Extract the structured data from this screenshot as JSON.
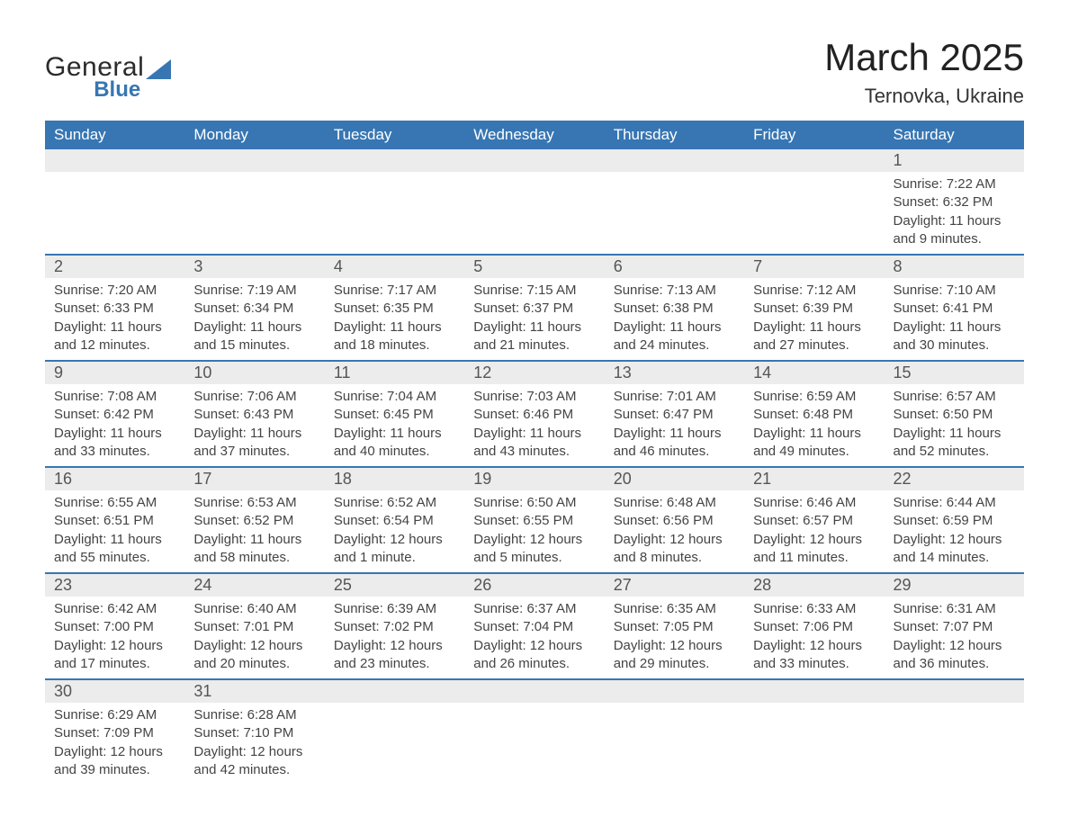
{
  "brand": {
    "word1": "General",
    "word2": "Blue",
    "accent_color": "#3776b3"
  },
  "title": "March 2025",
  "location": "Ternovka, Ukraine",
  "colors": {
    "header_bg": "#3776b3",
    "header_text": "#ffffff",
    "row_divider": "#3776b3",
    "daynum_bg": "#ececec",
    "body_text": "#444444",
    "page_bg": "#ffffff"
  },
  "typography": {
    "title_fontsize_pt": 32,
    "location_fontsize_pt": 17,
    "dow_fontsize_pt": 13,
    "daynum_fontsize_pt": 14,
    "body_fontsize_pt": 11
  },
  "layout": {
    "columns": 7,
    "start_day_of_week": "Sunday"
  },
  "days_of_week": [
    "Sunday",
    "Monday",
    "Tuesday",
    "Wednesday",
    "Thursday",
    "Friday",
    "Saturday"
  ],
  "labels": {
    "sunrise": "Sunrise: ",
    "sunset": "Sunset: ",
    "daylight": "Daylight: "
  },
  "weeks": [
    [
      {
        "empty": true
      },
      {
        "empty": true
      },
      {
        "empty": true
      },
      {
        "empty": true
      },
      {
        "empty": true
      },
      {
        "empty": true
      },
      {
        "n": "1",
        "sunrise": "7:22 AM",
        "sunset": "6:32 PM",
        "daylight": "11 hours and 9 minutes."
      }
    ],
    [
      {
        "n": "2",
        "sunrise": "7:20 AM",
        "sunset": "6:33 PM",
        "daylight": "11 hours and 12 minutes."
      },
      {
        "n": "3",
        "sunrise": "7:19 AM",
        "sunset": "6:34 PM",
        "daylight": "11 hours and 15 minutes."
      },
      {
        "n": "4",
        "sunrise": "7:17 AM",
        "sunset": "6:35 PM",
        "daylight": "11 hours and 18 minutes."
      },
      {
        "n": "5",
        "sunrise": "7:15 AM",
        "sunset": "6:37 PM",
        "daylight": "11 hours and 21 minutes."
      },
      {
        "n": "6",
        "sunrise": "7:13 AM",
        "sunset": "6:38 PM",
        "daylight": "11 hours and 24 minutes."
      },
      {
        "n": "7",
        "sunrise": "7:12 AM",
        "sunset": "6:39 PM",
        "daylight": "11 hours and 27 minutes."
      },
      {
        "n": "8",
        "sunrise": "7:10 AM",
        "sunset": "6:41 PM",
        "daylight": "11 hours and 30 minutes."
      }
    ],
    [
      {
        "n": "9",
        "sunrise": "7:08 AM",
        "sunset": "6:42 PM",
        "daylight": "11 hours and 33 minutes."
      },
      {
        "n": "10",
        "sunrise": "7:06 AM",
        "sunset": "6:43 PM",
        "daylight": "11 hours and 37 minutes."
      },
      {
        "n": "11",
        "sunrise": "7:04 AM",
        "sunset": "6:45 PM",
        "daylight": "11 hours and 40 minutes."
      },
      {
        "n": "12",
        "sunrise": "7:03 AM",
        "sunset": "6:46 PM",
        "daylight": "11 hours and 43 minutes."
      },
      {
        "n": "13",
        "sunrise": "7:01 AM",
        "sunset": "6:47 PM",
        "daylight": "11 hours and 46 minutes."
      },
      {
        "n": "14",
        "sunrise": "6:59 AM",
        "sunset": "6:48 PM",
        "daylight": "11 hours and 49 minutes."
      },
      {
        "n": "15",
        "sunrise": "6:57 AM",
        "sunset": "6:50 PM",
        "daylight": "11 hours and 52 minutes."
      }
    ],
    [
      {
        "n": "16",
        "sunrise": "6:55 AM",
        "sunset": "6:51 PM",
        "daylight": "11 hours and 55 minutes."
      },
      {
        "n": "17",
        "sunrise": "6:53 AM",
        "sunset": "6:52 PM",
        "daylight": "11 hours and 58 minutes."
      },
      {
        "n": "18",
        "sunrise": "6:52 AM",
        "sunset": "6:54 PM",
        "daylight": "12 hours and 1 minute."
      },
      {
        "n": "19",
        "sunrise": "6:50 AM",
        "sunset": "6:55 PM",
        "daylight": "12 hours and 5 minutes."
      },
      {
        "n": "20",
        "sunrise": "6:48 AM",
        "sunset": "6:56 PM",
        "daylight": "12 hours and 8 minutes."
      },
      {
        "n": "21",
        "sunrise": "6:46 AM",
        "sunset": "6:57 PM",
        "daylight": "12 hours and 11 minutes."
      },
      {
        "n": "22",
        "sunrise": "6:44 AM",
        "sunset": "6:59 PM",
        "daylight": "12 hours and 14 minutes."
      }
    ],
    [
      {
        "n": "23",
        "sunrise": "6:42 AM",
        "sunset": "7:00 PM",
        "daylight": "12 hours and 17 minutes."
      },
      {
        "n": "24",
        "sunrise": "6:40 AM",
        "sunset": "7:01 PM",
        "daylight": "12 hours and 20 minutes."
      },
      {
        "n": "25",
        "sunrise": "6:39 AM",
        "sunset": "7:02 PM",
        "daylight": "12 hours and 23 minutes."
      },
      {
        "n": "26",
        "sunrise": "6:37 AM",
        "sunset": "7:04 PM",
        "daylight": "12 hours and 26 minutes."
      },
      {
        "n": "27",
        "sunrise": "6:35 AM",
        "sunset": "7:05 PM",
        "daylight": "12 hours and 29 minutes."
      },
      {
        "n": "28",
        "sunrise": "6:33 AM",
        "sunset": "7:06 PM",
        "daylight": "12 hours and 33 minutes."
      },
      {
        "n": "29",
        "sunrise": "6:31 AM",
        "sunset": "7:07 PM",
        "daylight": "12 hours and 36 minutes."
      }
    ],
    [
      {
        "n": "30",
        "sunrise": "6:29 AM",
        "sunset": "7:09 PM",
        "daylight": "12 hours and 39 minutes."
      },
      {
        "n": "31",
        "sunrise": "6:28 AM",
        "sunset": "7:10 PM",
        "daylight": "12 hours and 42 minutes."
      },
      {
        "empty": true
      },
      {
        "empty": true
      },
      {
        "empty": true
      },
      {
        "empty": true
      },
      {
        "empty": true
      }
    ]
  ]
}
